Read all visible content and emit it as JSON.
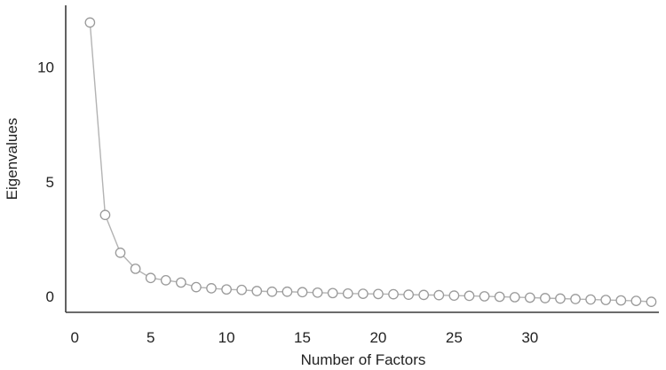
{
  "chart_data": {
    "type": "line",
    "xlabel": "Number of Factors",
    "ylabel": "Eigenvalues",
    "x_ticks": [
      0,
      5,
      10,
      15,
      20,
      25,
      30
    ],
    "y_ticks": [
      0,
      5,
      10
    ],
    "xlim": [
      -0.6,
      38.5
    ],
    "ylim": [
      -0.7,
      12.7
    ],
    "grid": false,
    "legend": "none",
    "colors": {
      "line": "#b3b3b3",
      "marker_stroke": "#9a9a9a",
      "axis": "#3a3a3a"
    },
    "series": [
      {
        "x": [
          1,
          2,
          3,
          4,
          5,
          6,
          7,
          8,
          9,
          10,
          11,
          12,
          13,
          14,
          15,
          16,
          17,
          18,
          19,
          20,
          21,
          22,
          23,
          24,
          25,
          26,
          27,
          28,
          29,
          30,
          31,
          32,
          33,
          34,
          35,
          36,
          37,
          38
        ],
        "values": [
          11.95,
          3.55,
          1.9,
          1.2,
          0.8,
          0.7,
          0.6,
          0.4,
          0.35,
          0.3,
          0.28,
          0.23,
          0.2,
          0.2,
          0.18,
          0.16,
          0.14,
          0.12,
          0.11,
          0.1,
          0.09,
          0.07,
          0.06,
          0.05,
          0.03,
          0.02,
          0.0,
          -0.02,
          -0.04,
          -0.06,
          -0.08,
          -0.1,
          -0.12,
          -0.14,
          -0.16,
          -0.18,
          -0.2,
          -0.24
        ]
      }
    ]
  }
}
